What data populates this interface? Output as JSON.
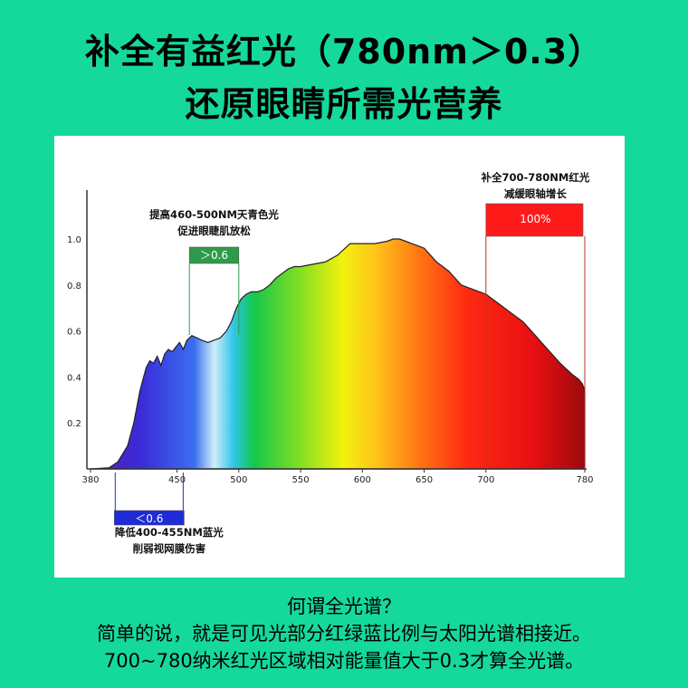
{
  "headline": {
    "line1": "补全有益红光（780nm＞0.3）",
    "line2": "还原眼睛所需光营养"
  },
  "chart_data": {
    "type": "area",
    "xlim": [
      380,
      780
    ],
    "ylim": [
      0,
      1.0
    ],
    "x_ticks": [
      380,
      450,
      500,
      550,
      600,
      650,
      700,
      780
    ],
    "y_ticks": [
      0.2,
      0.4,
      0.6,
      0.8,
      1.0
    ],
    "x_tick_labels": [
      "380",
      "450",
      "500",
      "550",
      "600",
      "650",
      "700",
      "780"
    ],
    "y_tick_labels": [
      "0.2",
      "0.4",
      "0.6",
      "0.8",
      "1.0"
    ],
    "xlabel": "",
    "ylabel": "",
    "series": [
      {
        "x": [
          380,
          395,
          402,
          410,
          415,
          420,
          425,
          428,
          431,
          434,
          437,
          440,
          443,
          446,
          449,
          452,
          455,
          458,
          462,
          466,
          470,
          475,
          480,
          485,
          490,
          494,
          498,
          502,
          506,
          510,
          515,
          520,
          525,
          530,
          535,
          540,
          545,
          550,
          560,
          570,
          580,
          590,
          600,
          610,
          620,
          625,
          630,
          635,
          640,
          645,
          650,
          655,
          660,
          670,
          680,
          690,
          700,
          710,
          720,
          730,
          740,
          750,
          760,
          770,
          775,
          778,
          780
        ],
        "values": [
          0.0,
          0.005,
          0.03,
          0.1,
          0.2,
          0.34,
          0.44,
          0.47,
          0.46,
          0.49,
          0.45,
          0.5,
          0.52,
          0.51,
          0.53,
          0.55,
          0.52,
          0.56,
          0.58,
          0.57,
          0.56,
          0.55,
          0.56,
          0.57,
          0.6,
          0.64,
          0.7,
          0.74,
          0.76,
          0.77,
          0.77,
          0.78,
          0.8,
          0.83,
          0.85,
          0.87,
          0.88,
          0.88,
          0.89,
          0.9,
          0.93,
          0.98,
          0.98,
          0.98,
          0.99,
          1.0,
          1.0,
          0.99,
          0.98,
          0.97,
          0.96,
          0.93,
          0.9,
          0.86,
          0.8,
          0.78,
          0.76,
          0.72,
          0.68,
          0.64,
          0.58,
          0.52,
          0.46,
          0.41,
          0.39,
          0.37,
          0.34
        ]
      }
    ],
    "annotations": [
      {
        "id": "cyan",
        "range": [
          460,
          500
        ],
        "label_lines": [
          "提高460-500NM天青色光",
          "促进眼睫肌放松"
        ],
        "badge_text": "＞0.6",
        "badge_color": "#2e9b4a",
        "position": "above"
      },
      {
        "id": "red",
        "range": [
          700,
          780
        ],
        "label_lines": [
          "补全700-780NM红光",
          "减缓眼轴增长"
        ],
        "badge_text": "100%",
        "badge_color": "#ff1a1a",
        "position": "above"
      },
      {
        "id": "blue",
        "range": [
          400,
          455
        ],
        "label_lines": [
          "降低400-455NM蓝光",
          "削弱视网膜伤害"
        ],
        "badge_text": "＜0.6",
        "badge_color": "#1f2bd6",
        "position": "below"
      }
    ]
  },
  "footer": {
    "line1": "何谓全光谱？",
    "line2": "简单的说，就是可见光部分红绿蓝比例与太阳光谱相接近。",
    "line3": "700~780纳米红光区域相对能量值大于0.3才算全光谱。"
  },
  "colors": {
    "background": "#15d99a",
    "panel": "#ffffff"
  }
}
